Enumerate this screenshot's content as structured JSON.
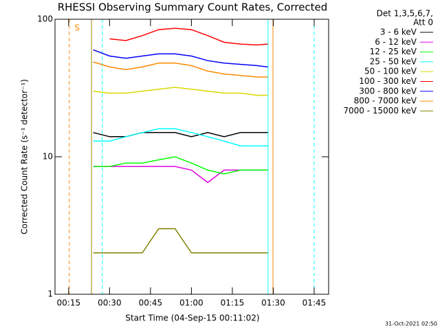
{
  "chart_data": {
    "type": "line",
    "title": "RHESSI Observing Summary Count Rates, Corrected",
    "xlabel": "Start Time (04-Sep-15 00:11:02)",
    "ylabel": "Corrected Count Rate (s⁻¹ detector⁻¹)",
    "log_y": true,
    "xlim": [
      10,
      110.3
    ],
    "xticks": [
      {
        "value": 15,
        "label": "00:15"
      },
      {
        "value": 30,
        "label": "00:30"
      },
      {
        "value": 45,
        "label": "00:45"
      },
      {
        "value": 60,
        "label": "01:00"
      },
      {
        "value": 75,
        "label": "01:15"
      },
      {
        "value": 90,
        "label": "01:30"
      },
      {
        "value": 105,
        "label": "01:45"
      }
    ],
    "ylim": [
      1,
      100
    ],
    "yticks": [
      1,
      10,
      100
    ],
    "legend_header": [
      "Det 1,3,5,6,7,",
      "Att 0"
    ],
    "legend_position": "right",
    "annotation": "S",
    "footer": "31-Oct-2021 02:50",
    "x": [
      24,
      30,
      36,
      42,
      48,
      54,
      60,
      66,
      72,
      78,
      84,
      88
    ],
    "series": [
      {
        "name": "3 - 6 keV",
        "color": "#000000",
        "values": [
          15,
          14,
          14,
          15,
          15,
          15,
          14,
          15,
          14,
          15,
          15,
          15
        ]
      },
      {
        "name": "6 - 12 keV",
        "color": "#e000e0",
        "values": [
          8.5,
          8.5,
          8.5,
          8.5,
          8.5,
          8.5,
          8,
          6.5,
          8,
          8,
          8,
          8
        ]
      },
      {
        "name": "12 - 25 keV",
        "color": "#00ff00",
        "values": [
          8.5,
          8.5,
          9,
          9,
          9.5,
          10,
          9,
          8,
          7.5,
          8,
          8,
          8
        ]
      },
      {
        "name": "25 - 50 keV",
        "color": "#00ffff",
        "values": [
          13,
          13,
          14,
          15,
          16,
          16,
          15,
          14,
          13,
          12,
          12,
          12
        ]
      },
      {
        "name": "50 - 100 keV",
        "color": "#d8d800",
        "values": [
          30,
          29,
          29,
          30,
          31,
          32,
          31,
          30,
          29,
          29,
          28,
          28
        ]
      },
      {
        "name": "100 - 300 keV",
        "color": "#ff0000",
        "values": [
          null,
          72,
          70,
          76,
          84,
          86,
          84,
          76,
          68,
          66,
          65,
          66
        ]
      },
      {
        "name": "300 - 800 keV",
        "color": "#0000ff",
        "values": [
          60,
          54,
          52,
          54,
          56,
          56,
          54,
          50,
          48,
          47,
          46,
          45
        ]
      },
      {
        "name": "800 - 7000 keV",
        "color": "#ff8800",
        "values": [
          49,
          45,
          43,
          45,
          48,
          48,
          46,
          42,
          40,
          39,
          38,
          38
        ]
      },
      {
        "name": "7000 - 15000 keV",
        "color": "#808000",
        "values": [
          2,
          2,
          2,
          2,
          3,
          3,
          2,
          2,
          2,
          2,
          2,
          2
        ]
      }
    ],
    "vlines": [
      {
        "x": 15.25,
        "color": "#ff8800",
        "dashed": true
      },
      {
        "x": 23.3,
        "color": "#00ffff",
        "dashed": false
      },
      {
        "x": 23.4,
        "color": "#ff8800",
        "dashed": false
      },
      {
        "x": 27.35,
        "color": "#00ffff",
        "dashed": true
      },
      {
        "x": 88.1,
        "color": "#00ffff",
        "dashed": false
      },
      {
        "x": 89.9,
        "color": "#ff8800",
        "dashed": false
      },
      {
        "x": 105,
        "color": "#00ffff",
        "dashed": true
      }
    ]
  }
}
